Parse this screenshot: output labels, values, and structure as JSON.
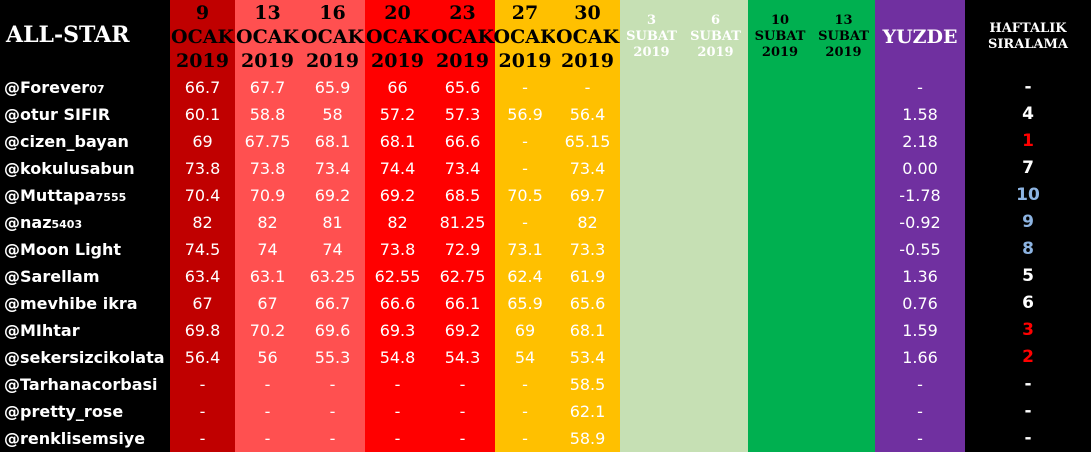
{
  "header": {
    "title": "ALL-STAR",
    "columns": [
      {
        "lines": [
          "9",
          "OCAK",
          "2019"
        ],
        "color": "#c00000",
        "text_color": "#000000"
      },
      {
        "lines": [
          "13",
          "OCAK",
          "2019"
        ],
        "color": "#ff5050",
        "text_color": "#000000"
      },
      {
        "lines": [
          "16",
          "OCAK",
          "2019"
        ],
        "color": "#ff5050",
        "text_color": "#000000"
      },
      {
        "lines": [
          "20",
          "OCAK",
          "2019"
        ],
        "color": "#ff0000",
        "text_color": "#000000"
      },
      {
        "lines": [
          "23",
          "OCAK",
          "2019"
        ],
        "color": "#ff0000",
        "text_color": "#000000"
      },
      {
        "lines": [
          "27",
          "OCAK",
          "2019"
        ],
        "color": "#ffc000",
        "text_color": "#000000"
      },
      {
        "lines": [
          "30",
          "OCAK",
          "2019"
        ],
        "color": "#ffc000",
        "text_color": "#000000"
      },
      {
        "lines": [
          "3",
          "SUBAT",
          "2019"
        ],
        "color": "#c6e0b4",
        "text_color": "#ffffff"
      },
      {
        "lines": [
          "6",
          "SUBAT",
          "2019"
        ],
        "color": "#c6e0b4",
        "text_color": "#ffffff"
      },
      {
        "lines": [
          "10",
          "SUBAT",
          "2019"
        ],
        "color": "#00b050",
        "text_color": "#000000"
      },
      {
        "lines": [
          "13",
          "SUBAT",
          "2019"
        ],
        "color": "#00b050",
        "text_color": "#000000"
      },
      {
        "lines": [
          "YUZDE"
        ],
        "color": "#7030a0",
        "text_color": "#ffffff"
      },
      {
        "lines": [
          "HAFTALIK",
          "SIRALAMA"
        ],
        "color": "#000000",
        "text_color": "#ffffff"
      }
    ]
  },
  "rows": [
    {
      "name": "@Forever",
      "name_small": "07",
      "values": [
        "66.7",
        "67.7",
        "65.9",
        "66",
        "65.6",
        "-",
        "-"
      ],
      "change": "-",
      "rank": "-"
    },
    {
      "name": "@otur SIFIR",
      "values": [
        "60.1",
        "58.8",
        "58",
        "57.2",
        "57.3",
        "56.9",
        "56.4"
      ],
      "change": "1.58",
      "rank": "4"
    },
    {
      "name": "@cizen_bayan",
      "values": [
        "69",
        "67.75",
        "68.1",
        "68.1",
        "66.6",
        "-",
        "65.15"
      ],
      "change": "2.18",
      "rank": "1",
      "rank_color": "#ff0000"
    },
    {
      "name": "@kokulusabun",
      "values": [
        "73.8",
        "73.8",
        "73.4",
        "74.4",
        "73.4",
        "-",
        "73.4"
      ],
      "change": "0.00",
      "rank": "7"
    },
    {
      "name": "@Muttapa",
      "name_small": "7555",
      "values": [
        "70.4",
        "70.9",
        "69.2",
        "69.2",
        "68.5",
        "70.5",
        "69.7"
      ],
      "change": "-1.78",
      "rank": "10",
      "rank_color": "#8db4e2"
    },
    {
      "name": "@naz",
      "name_small": "5403",
      "values": [
        "82",
        "82",
        "81",
        "82",
        "81.25",
        "-",
        "82"
      ],
      "change": "-0.92",
      "rank": "9",
      "rank_color": "#8db4e2"
    },
    {
      "name": "@Moon Light",
      "values": [
        "74.5",
        "74",
        "74",
        "73.8",
        "72.9",
        "73.1",
        "73.3"
      ],
      "change": "-0.55",
      "rank": "8",
      "rank_color": "#8db4e2"
    },
    {
      "name": "@Sarellam",
      "values": [
        "63.4",
        "63.1",
        "63.25",
        "62.55",
        "62.75",
        "62.4",
        "61.9"
      ],
      "change": "1.36",
      "rank": "5"
    },
    {
      "name": "@mevhibe ikra",
      "values": [
        "67",
        "67",
        "66.7",
        "66.6",
        "66.1",
        "65.9",
        "65.6"
      ],
      "change": "0.76",
      "rank": "6"
    },
    {
      "name": "@MIhtar",
      "values": [
        "69.8",
        "70.2",
        "69.6",
        "69.3",
        "69.2",
        "69",
        "68.1"
      ],
      "change": "1.59",
      "rank": "3",
      "rank_color": "#ff0000"
    },
    {
      "name": "@sekersizcikolata",
      "values": [
        "56.4",
        "56",
        "55.3",
        "54.8",
        "54.3",
        "54",
        "53.4"
      ],
      "change": "1.66",
      "rank": "2",
      "rank_color": "#ff0000"
    },
    {
      "name": "@Tarhanacorbasi",
      "values": [
        "-",
        "-",
        "-",
        "-",
        "-",
        "-",
        "58.5"
      ],
      "change": "-",
      "rank": "-"
    },
    {
      "name": "@pretty_rose",
      "values": [
        "-",
        "-",
        "-",
        "-",
        "-",
        "-",
        "62.1"
      ],
      "change": "-",
      "rank": "-"
    },
    {
      "name": "@renklisemsiye",
      "values": [
        "-",
        "-",
        "-",
        "-",
        "-",
        "-",
        "58.9"
      ],
      "change": "-",
      "rank": "-"
    }
  ]
}
